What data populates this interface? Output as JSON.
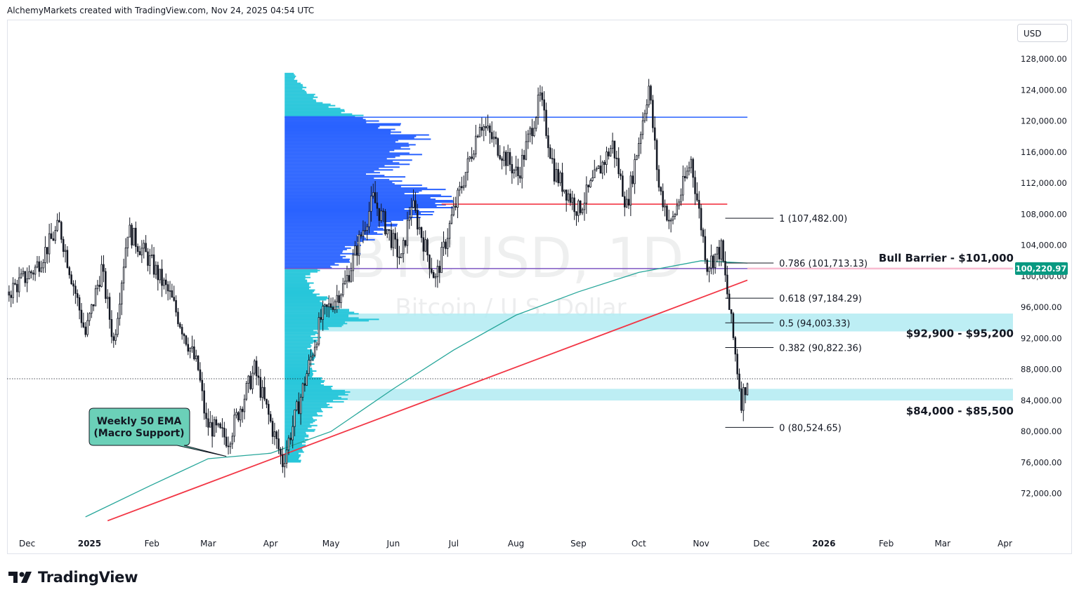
{
  "header": {
    "credit": "AlchemyMarkets created with TradingView.com, Nov 24, 2025 04:54 UTC"
  },
  "currency": "USD",
  "footer": {
    "brand": "TradingView"
  },
  "watermark": {
    "symbol": "BTCUSD, 1D",
    "name": "Bitcoin / U.S. Dollar"
  },
  "colors": {
    "candle": "#131722",
    "ema": "#26a69a",
    "trendline": "#f23645",
    "resistance_top": "#2962ff",
    "resistance_mid": "#f23645",
    "poc_line": "#7e57c2",
    "zone": "#b2ebf2",
    "vp_dark": "#2962ff",
    "vp_light": "#26c6da",
    "bull_barrier": "#f8bbd0",
    "price_tag": "#089981",
    "callout": "#6bd0b8"
  },
  "chart_data": {
    "type": "candlestick",
    "symbol": "BTCUSD",
    "timeframe": "1D",
    "y_axis": {
      "min": 68000,
      "max": 130000,
      "ticks": [
        "128,000.00",
        "124,000.00",
        "120,000.00",
        "116,000.00",
        "112,000.00",
        "108,000.00",
        "104,000.00",
        "100,000.00",
        "96,000.00",
        "92,000.00",
        "88,000.00",
        "84,000.00",
        "80,000.00",
        "76,000.00",
        "72,000.00"
      ],
      "tick_values": [
        128000,
        124000,
        120000,
        116000,
        112000,
        108000,
        104000,
        100000,
        96000,
        92000,
        88000,
        84000,
        80000,
        76000,
        72000
      ]
    },
    "x_axis": {
      "labels": [
        "Dec",
        "2025",
        "Feb",
        "Mar",
        "Apr",
        "May",
        "Jun",
        "Jul",
        "Aug",
        "Sep",
        "Oct",
        "Nov",
        "Dec",
        "2026",
        "Feb",
        "Mar",
        "Apr"
      ],
      "label_dates": [
        "2024-12-01",
        "2025-01-01",
        "2025-02-01",
        "2025-03-01",
        "2025-04-01",
        "2025-05-01",
        "2025-06-01",
        "2025-07-01",
        "2025-08-01",
        "2025-09-01",
        "2025-10-01",
        "2025-11-01",
        "2025-12-01",
        "2026-01-01",
        "2026-02-01",
        "2026-03-01",
        "2026-04-01"
      ],
      "start": "2024-11-21",
      "end": "2026-04-05"
    },
    "price_anchors": [
      [
        "2024-11-22",
        98000
      ],
      [
        "2024-12-05",
        101000
      ],
      [
        "2024-12-17",
        106500
      ],
      [
        "2024-12-30",
        92500
      ],
      [
        "2025-01-07",
        101000
      ],
      [
        "2025-01-13",
        91500
      ],
      [
        "2025-01-20",
        106000
      ],
      [
        "2025-01-31",
        102000
      ],
      [
        "2025-02-10",
        97500
      ],
      [
        "2025-02-24",
        88000
      ],
      [
        "2025-02-28",
        81000
      ],
      [
        "2025-03-11",
        79000
      ],
      [
        "2025-03-24",
        88000
      ],
      [
        "2025-04-07",
        76000
      ],
      [
        "2025-04-16",
        84500
      ],
      [
        "2025-04-26",
        94500
      ],
      [
        "2025-05-08",
        99000
      ],
      [
        "2025-05-22",
        110000
      ],
      [
        "2025-06-05",
        102000
      ],
      [
        "2025-06-10",
        109500
      ],
      [
        "2025-06-22",
        99500
      ],
      [
        "2025-06-30",
        107500
      ],
      [
        "2025-07-10",
        116000
      ],
      [
        "2025-07-14",
        120000
      ],
      [
        "2025-08-02",
        113000
      ],
      [
        "2025-08-13",
        123000
      ],
      [
        "2025-08-20",
        113500
      ],
      [
        "2025-09-01",
        108500
      ],
      [
        "2025-09-18",
        117000
      ],
      [
        "2025-09-25",
        109000
      ],
      [
        "2025-10-06",
        124500
      ],
      [
        "2025-10-11",
        111500
      ],
      [
        "2025-10-17",
        106500
      ],
      [
        "2025-10-27",
        115000
      ],
      [
        "2025-11-04",
        101500
      ],
      [
        "2025-11-11",
        103500
      ],
      [
        "2025-11-17",
        92000
      ],
      [
        "2025-11-21",
        84000
      ],
      [
        "2025-11-24",
        86800
      ]
    ],
    "ema_weekly_50": [
      [
        "2024-12-30",
        69000
      ],
      [
        "2025-01-31",
        73000
      ],
      [
        "2025-03-01",
        76500
      ],
      [
        "2025-04-01",
        77200
      ],
      [
        "2025-05-01",
        80000
      ],
      [
        "2025-06-01",
        85500
      ],
      [
        "2025-07-01",
        90500
      ],
      [
        "2025-08-01",
        95000
      ],
      [
        "2025-09-01",
        98000
      ],
      [
        "2025-10-01",
        100500
      ],
      [
        "2025-11-01",
        102000
      ],
      [
        "2025-11-24",
        101700
      ]
    ],
    "trendline": {
      "from": [
        "2025-01-10",
        68500
      ],
      "to": [
        "2025-11-24",
        99500
      ]
    },
    "horizontal_lines": [
      {
        "price": 120500,
        "from": "2025-04-08",
        "to": "2025-11-24",
        "color": "#2962ff"
      },
      {
        "price": 109300,
        "from": "2025-06-25",
        "to": "2025-11-14",
        "color": "#f23645"
      },
      {
        "price": 101000,
        "from": "2025-04-08",
        "to": "2025-11-24",
        "color": "#7e57c2"
      }
    ],
    "zones": [
      {
        "low": 92900,
        "high": 95200,
        "from": "2025-04-08",
        "to": "2026-04-05"
      },
      {
        "low": 84000,
        "high": 85500,
        "from": "2025-04-08",
        "to": "2026-04-05"
      }
    ],
    "bull_barrier_line": {
      "price": 101000,
      "from": "2025-11-24",
      "to": "2026-04-05"
    },
    "last_price": 86800,
    "price_tag": {
      "value": 100220.97,
      "label": "100,220.97"
    },
    "fibonacci": {
      "from": "2025-11-13",
      "to": "2025-12-07",
      "levels": [
        {
          "ratio": 1,
          "price": 107482.0,
          "label": "1 (107,482.00)"
        },
        {
          "ratio": 0.786,
          "price": 101713.13,
          "label": "0.786 (101,713.13)"
        },
        {
          "ratio": 0.618,
          "price": 97184.29,
          "label": "0.618 (97,184.29)"
        },
        {
          "ratio": 0.5,
          "price": 94003.33,
          "label": "0.5 (94,003.33)"
        },
        {
          "ratio": 0.382,
          "price": 90822.36,
          "label": "0.382 (90,822.36)"
        },
        {
          "ratio": 0,
          "price": 80524.65,
          "label": "0 (80,524.65)"
        }
      ]
    },
    "volume_profile": {
      "start": "2025-04-08",
      "price_low": 76000,
      "price_high": 126200,
      "poc_price": 109300,
      "value_area_low": 101000,
      "value_area_high": 120500,
      "peaks": [
        [
          77000,
          0.1
        ],
        [
          80000,
          0.16
        ],
        [
          82000,
          0.2
        ],
        [
          84800,
          0.39
        ],
        [
          87000,
          0.18
        ],
        [
          90000,
          0.16
        ],
        [
          93000,
          0.21
        ],
        [
          94400,
          0.52
        ],
        [
          96000,
          0.3
        ],
        [
          98500,
          0.17
        ],
        [
          100000,
          0.15
        ],
        [
          102000,
          0.38
        ],
        [
          104500,
          0.48
        ],
        [
          106500,
          0.6
        ],
        [
          109300,
          0.97
        ],
        [
          111500,
          0.82
        ],
        [
          113000,
          0.6
        ],
        [
          115500,
          0.74
        ],
        [
          117500,
          0.84
        ],
        [
          119500,
          0.65
        ],
        [
          121500,
          0.3
        ],
        [
          123500,
          0.15
        ],
        [
          125500,
          0.06
        ]
      ]
    },
    "annotations": [
      {
        "text": "Bull Barrier - $101,000",
        "price": 101000
      },
      {
        "text": "$92,900 - $95,200",
        "price": 92900
      },
      {
        "text": "$84,000 - $85,500",
        "price": 84000
      },
      {
        "text_lines": [
          "Weekly 50 EMA",
          "(Macro Support)"
        ],
        "points_to": [
          "2025-03-10",
          76800
        ]
      }
    ]
  }
}
